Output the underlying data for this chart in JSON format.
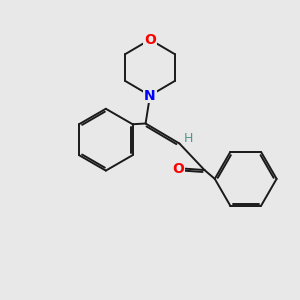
{
  "bg_color": "#e8e8e8",
  "line_color": "#1a1a1a",
  "O_color": "#ff0000",
  "N_color": "#0000ff",
  "H_color": "#4a9a8a",
  "O_label": "O",
  "N_label": "N",
  "H_label": "H",
  "figsize": [
    3.0,
    3.0
  ],
  "dpi": 100
}
